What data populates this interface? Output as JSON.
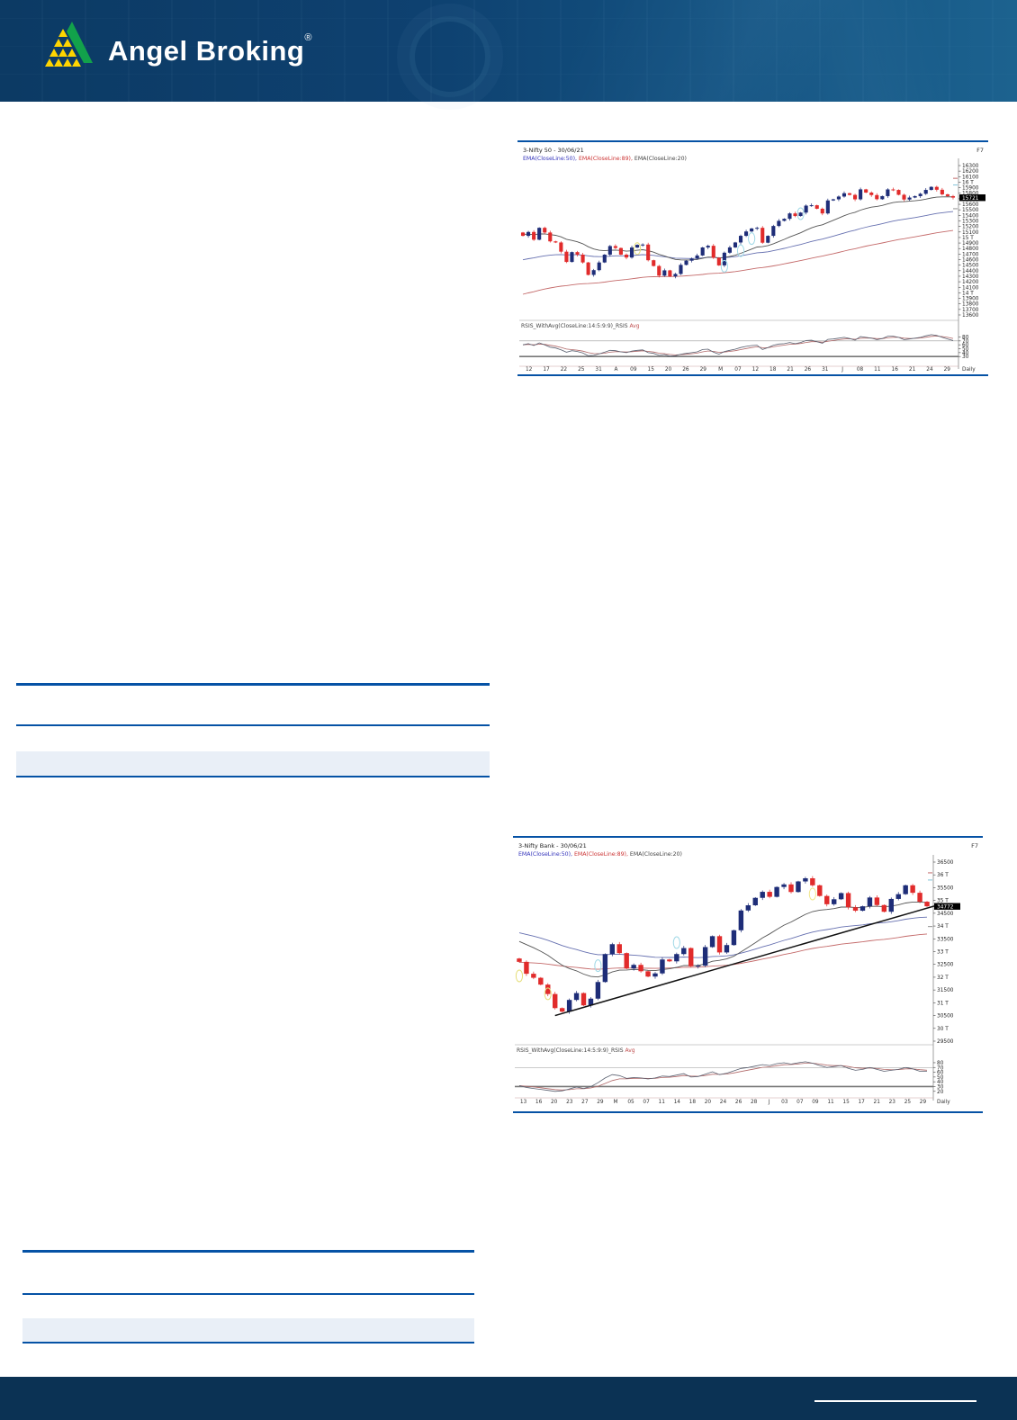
{
  "header": {
    "brand_name": "Angel Broking",
    "registered_mark": "®"
  },
  "colors": {
    "header_bg": "#0e4170",
    "accent_blue": "#0552a5",
    "candle_up": "#1e2d78",
    "candle_down": "#e12b2b",
    "ema20": "#555555",
    "ema50": "#6670b0",
    "ema89": "#c46a6a",
    "rsi_line": "#5a6070",
    "rsi_avg": "#b06868",
    "logo_green": "#12a14b",
    "logo_yellow": "#ffd500",
    "footer_bg": "#0b3254"
  },
  "chart_data": [
    {
      "type": "candlestick_with_rsi",
      "title": "3-Nifty 50 - 30/06/21",
      "function_key": "F7",
      "timeframe": "Daily",
      "legend": [
        {
          "label": "EMA(CloseLine:50),",
          "color": "#3333bb"
        },
        {
          "label": "EMA(CloseLine:89),",
          "color": "#cc3333"
        },
        {
          "label": "EMA(CloseLine:20)",
          "color": "#444444"
        }
      ],
      "rsi_label": "RSIS_WithAvg(CloseLine:14:5:9:9)_RSIS",
      "rsi_label_avg": "Avg",
      "y_axis": {
        "min": 13600,
        "max": 16300,
        "step": 100,
        "labels": [
          "16300",
          "16200",
          "16100",
          "16 T",
          "15900",
          "15800",
          "15700",
          "15600",
          "15500",
          "15400",
          "15300",
          "15200",
          "15100",
          "15 T",
          "14900",
          "14800",
          "14700",
          "14600",
          "14500",
          "14400",
          "14300",
          "14200",
          "14100",
          "14 T",
          "13900",
          "13800",
          "13700",
          "13600"
        ]
      },
      "rsi_ticks": [
        80,
        70,
        60,
        50,
        40,
        30
      ],
      "x_labels": [
        "12",
        "17",
        "22",
        "25",
        "31",
        "A",
        "09",
        "15",
        "20",
        "26",
        "29",
        "M",
        "07",
        "12",
        "18",
        "21",
        "26",
        "31",
        "J",
        "08",
        "11",
        "16",
        "21",
        "24",
        "29"
      ],
      "last_price": {
        "label": "15721",
        "value": 15721
      },
      "closes": [
        15030,
        15100,
        14960,
        15175,
        15090,
        14930,
        14910,
        14744,
        14558,
        14736,
        14690,
        14549,
        14324,
        14410,
        14549,
        14690,
        14845,
        14810,
        14690,
        14638,
        14819,
        14867,
        14873,
        14589,
        14485,
        14310,
        14406,
        14296,
        14341,
        14505,
        14581,
        14617,
        14675,
        14820,
        14850,
        14634,
        14496,
        14725,
        14821,
        14910,
        15030,
        15109,
        15163,
        15175,
        14906,
        15030,
        15208,
        15301,
        15338,
        15435,
        15388,
        15450,
        15576,
        15583,
        15520,
        15435,
        15670,
        15690,
        15740,
        15800,
        15770,
        15690,
        15870,
        15812,
        15767,
        15692,
        15748,
        15869,
        15860,
        15772,
        15686,
        15722,
        15748,
        15790,
        15860,
        15915,
        15863,
        15780,
        15748,
        15721
      ],
      "rsi": [
        60,
        63,
        58,
        65,
        60,
        54,
        52,
        47,
        41,
        45,
        43,
        39,
        32,
        33,
        37,
        41,
        46,
        45,
        42,
        40,
        44,
        46,
        47,
        40,
        38,
        33,
        35,
        31,
        32,
        36,
        38,
        40,
        42,
        48,
        49,
        41,
        36,
        43,
        46,
        49,
        53,
        56,
        58,
        59,
        48,
        53,
        59,
        62,
        63,
        66,
        63,
        66,
        71,
        72,
        68,
        64,
        74,
        75,
        77,
        79,
        76,
        72,
        81,
        79,
        77,
        73,
        76,
        82,
        82,
        79,
        73,
        75,
        77,
        79,
        83,
        86,
        84,
        79,
        75,
        71
      ],
      "ema_periods": [
        {
          "period": 89,
          "seed": 13950,
          "color_key": "ema89"
        },
        {
          "period": 50,
          "seed": 14580,
          "color_key": "ema50"
        },
        {
          "period": 20,
          "seed": 15060,
          "color_key": "ema20"
        }
      ],
      "annotations": [
        {
          "i": 21,
          "v": 14800,
          "c": "#e6de7a"
        },
        {
          "i": 37,
          "v": 14480,
          "c": "#9fd8e6"
        },
        {
          "i": 40,
          "v": 14760,
          "c": "#9fd8e6"
        },
        {
          "i": 42,
          "v": 14980,
          "c": "#9fd8e6"
        },
        {
          "i": 51,
          "v": 15430,
          "c": "#9fd8e6"
        }
      ],
      "axis_markers": [
        {
          "v": 16070,
          "c": "#c87878"
        },
        {
          "v": 15950,
          "c": "#8cc8dc"
        },
        {
          "v": 15520,
          "c": "#999999"
        }
      ]
    },
    {
      "type": "candlestick_with_rsi",
      "title": "3-Nifty Bank - 30/06/21",
      "function_key": "F7",
      "timeframe": "Daily",
      "legend": [
        {
          "label": "EMA(CloseLine:50),",
          "color": "#3333bb"
        },
        {
          "label": "EMA(CloseLine:89),",
          "color": "#cc3333"
        },
        {
          "label": "EMA(CloseLine:20)",
          "color": "#444444"
        }
      ],
      "rsi_label": "RSIS_WithAvg(CloseLine:14:5:9:9)_RSIS",
      "rsi_label_avg": "Avg",
      "y_axis": {
        "min": 29500,
        "max": 36500,
        "step": 500,
        "labels": [
          "36500",
          "36 T",
          "35500",
          "35 T",
          "34500",
          "34 T",
          "33500",
          "33 T",
          "32500",
          "32 T",
          "31500",
          "31 T",
          "30500",
          "30 T",
          "29500"
        ]
      },
      "rsi_ticks": [
        80,
        70,
        60,
        50,
        40,
        30,
        20
      ],
      "x_labels": [
        "13",
        "16",
        "20",
        "23",
        "27",
        "29",
        "M",
        "05",
        "07",
        "11",
        "14",
        "18",
        "20",
        "24",
        "26",
        "28",
        "J",
        "03",
        "07",
        "09",
        "11",
        "15",
        "17",
        "21",
        "23",
        "25",
        "29"
      ],
      "last_price": {
        "label": "34772",
        "value": 34772
      },
      "closes": [
        32600,
        32135,
        31977,
        31710,
        31342,
        30792,
        30653,
        31111,
        31379,
        30898,
        31162,
        31812,
        32904,
        33290,
        32942,
        32342,
        32482,
        32232,
        32025,
        32148,
        32692,
        32620,
        32904,
        33139,
        32426,
        32450,
        33177,
        33604,
        32968,
        33256,
        33834,
        34608,
        34811,
        35102,
        35337,
        35142,
        35526,
        35627,
        35330,
        35743,
        35866,
        35592,
        35175,
        34852,
        35047,
        35288,
        34733,
        34599,
        34772,
        35115,
        34820,
        34558,
        35060,
        35246,
        35592,
        35300,
        34950,
        34772
      ],
      "rsi": [
        32,
        28,
        26,
        24,
        22,
        20,
        21,
        25,
        29,
        26,
        30,
        38,
        48,
        55,
        53,
        47,
        49,
        48,
        46,
        48,
        52,
        51,
        54,
        57,
        50,
        51,
        56,
        61,
        55,
        58,
        63,
        68,
        70,
        73,
        76,
        74,
        78,
        80,
        77,
        80,
        82,
        79,
        74,
        70,
        72,
        74,
        68,
        64,
        66,
        70,
        66,
        62,
        64,
        66,
        70,
        67,
        62,
        62
      ],
      "ema_periods": [
        {
          "period": 89,
          "seed": 32580,
          "color_key": "ema89"
        },
        {
          "period": 50,
          "seed": 33780,
          "color_key": "ema50"
        },
        {
          "period": 20,
          "seed": 33480,
          "color_key": "ema20"
        }
      ],
      "trendline": {
        "from": {
          "index": 5,
          "value": 30500
        },
        "to": {
          "index": 57,
          "value": 34780
        }
      },
      "annotations": [
        {
          "i": 0,
          "v": 32050,
          "c": "#e6de7a"
        },
        {
          "i": 4,
          "v": 31350,
          "c": "#e6de7a"
        },
        {
          "i": 11,
          "v": 32450,
          "c": "#9fd8e6"
        },
        {
          "i": 22,
          "v": 33350,
          "c": "#9fd8e6"
        },
        {
          "i": 41,
          "v": 35250,
          "c": "#f0e68c"
        }
      ],
      "axis_markers": [
        {
          "v": 36080,
          "c": "#c87878"
        },
        {
          "v": 35800,
          "c": "#8cc8dc"
        },
        {
          "v": 33980,
          "c": "#999999"
        }
      ]
    }
  ]
}
